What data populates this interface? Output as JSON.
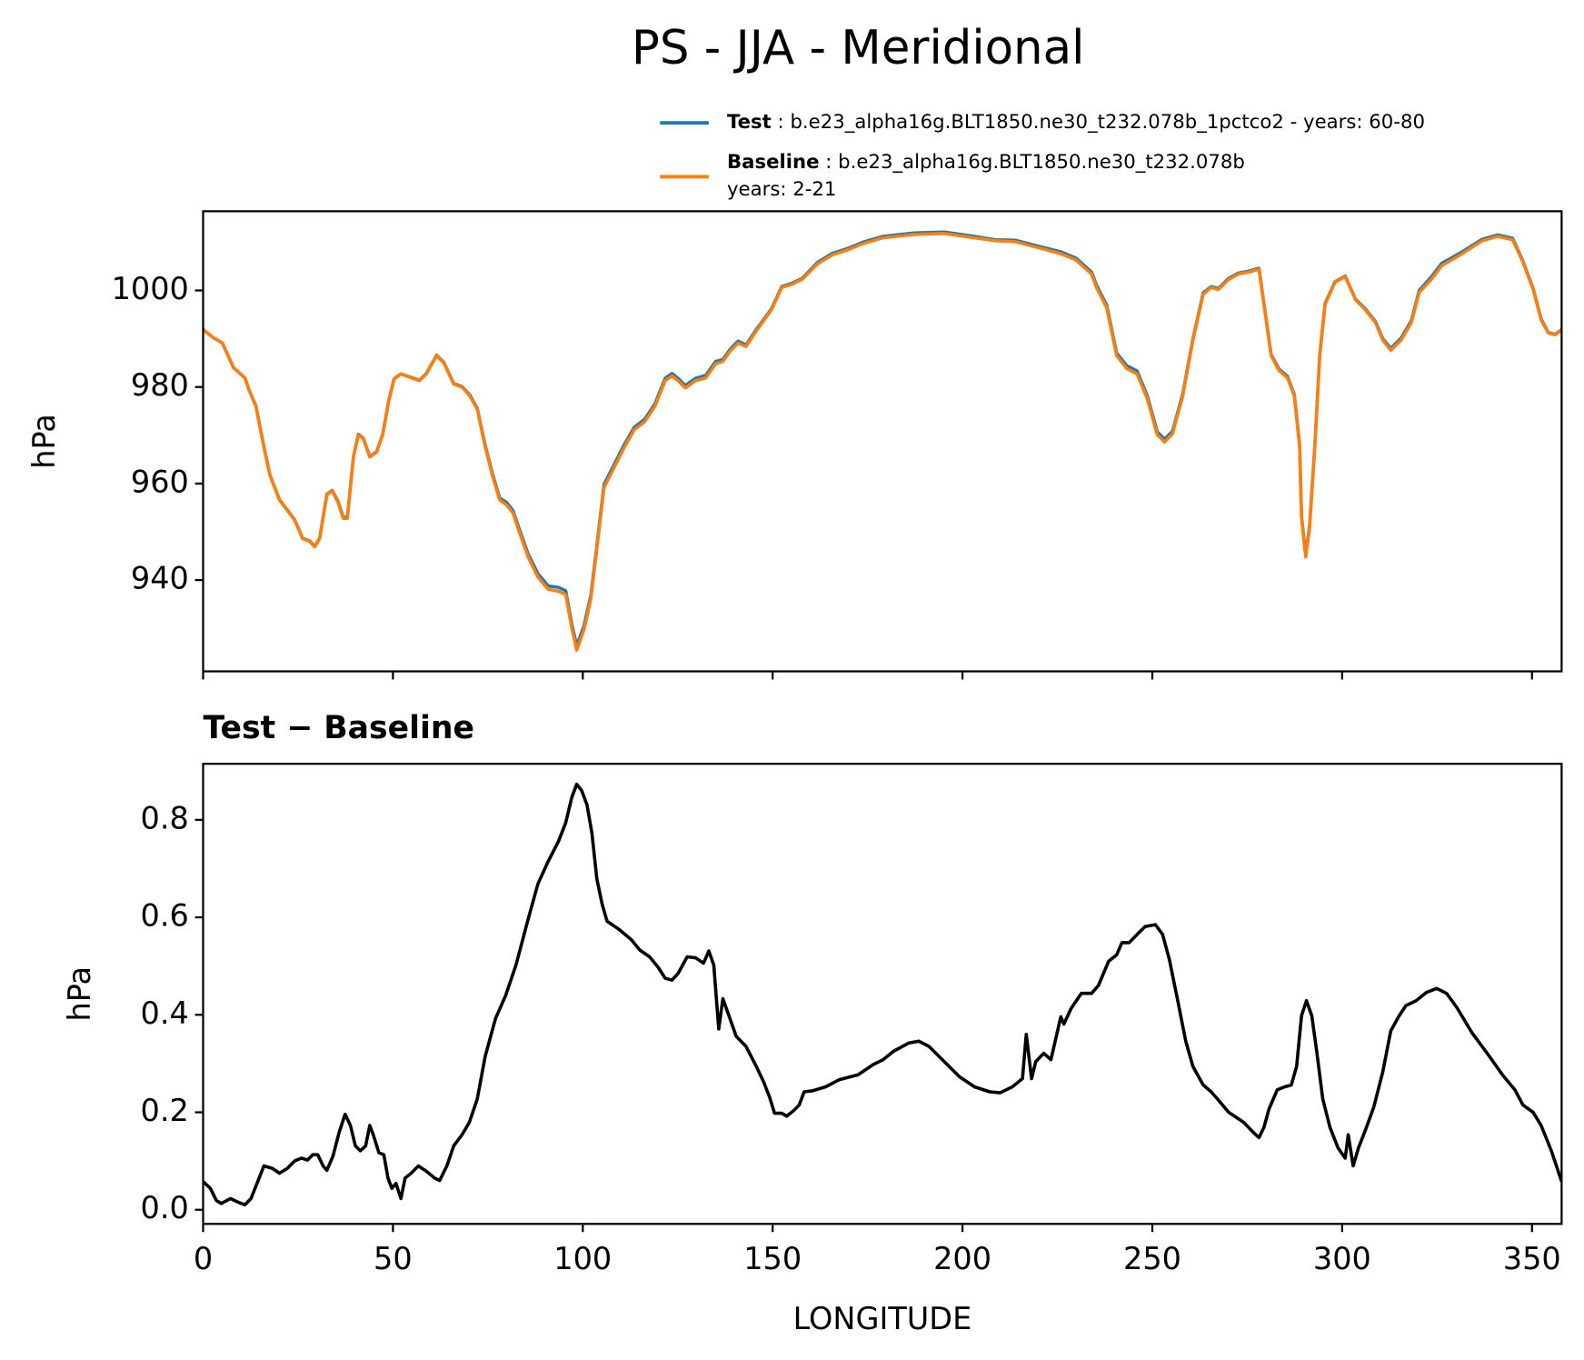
{
  "chart_data": [
    {
      "type": "line",
      "title": "PS - JJA - Meridional",
      "ylabel": "hPa",
      "xlim": [
        0,
        357.8
      ],
      "ylim": [
        921.1,
        1016.4
      ],
      "xticks": [
        0,
        50,
        100,
        150,
        200,
        250,
        300,
        350
      ],
      "show_xtick_labels": false,
      "yticks": [
        940,
        960,
        980,
        1000
      ],
      "legend": "above right",
      "x": [
        0,
        2.9,
        5.1,
        8.0,
        11.0,
        12.0,
        13.9,
        16.0,
        17.6,
        20.1,
        22.7,
        24.1,
        26.2,
        28.1,
        29.4,
        30.7,
        32.6,
        34.0,
        35.6,
        36.9,
        38.0,
        39.6,
        40.9,
        42.2,
        43.9,
        45.7,
        47.3,
        48.9,
        50.3,
        52.1,
        54.8,
        57.0,
        58.8,
        61.5,
        63.4,
        66.0,
        68.2,
        70.3,
        72.2,
        74.3,
        76.2,
        78.1,
        79.9,
        81.6,
        83.4,
        85.6,
        88.2,
        90.9,
        93.6,
        95.5,
        97.1,
        98.4,
        100.3,
        102.1,
        103.7,
        105.6,
        108.3,
        111.0,
        113.6,
        116.3,
        119.0,
        121.7,
        123.5,
        125.1,
        127.0,
        129.7,
        132.4,
        135.0,
        136.9,
        139.0,
        140.9,
        143.0,
        145.7,
        149.7,
        152.4,
        155.1,
        157.8,
        161.8,
        165.8,
        169.8,
        173.8,
        179.1,
        187.2,
        195.2,
        203.2,
        208.6,
        213.9,
        219.3,
        225.9,
        229.9,
        234.0,
        235.3,
        238.0,
        240.6,
        243.3,
        246.0,
        248.7,
        251.3,
        253.2,
        255.3,
        258.0,
        260.7,
        263.4,
        265.5,
        267.4,
        270.1,
        272.7,
        275.4,
        278.1,
        279.4,
        281.3,
        283.4,
        285.6,
        287.4,
        288.8,
        289.3,
        290.4,
        291.4,
        292.8,
        294.1,
        295.5,
        298.1,
        300.8,
        303.5,
        306.1,
        308.8,
        310.7,
        312.8,
        315.5,
        318.2,
        320.3,
        323.5,
        326.2,
        331.6,
        336.9,
        340.9,
        344.9,
        347.6,
        350.3,
        352.4,
        354.3,
        356.1,
        357.8
      ],
      "series": [
        {
          "name": "Test",
          "description": [
            " : b.e23_alpha16g.BLT1850.ne30_t232.078b_1pctco2 - years: 60-80"
          ],
          "color": "#1f77b4",
          "values": [
            991.9,
            990.1,
            989.1,
            984.0,
            981.9,
            979.6,
            976.1,
            967.7,
            961.8,
            956.7,
            954.0,
            952.5,
            948.7,
            948.1,
            947.0,
            948.7,
            957.8,
            958.6,
            956.2,
            953.0,
            953.0,
            965.6,
            970.2,
            969.4,
            965.6,
            966.6,
            970.2,
            977.2,
            981.7,
            982.7,
            982.0,
            981.4,
            982.8,
            986.6,
            985.1,
            980.7,
            980.1,
            978.3,
            975.6,
            967.9,
            962.1,
            957.0,
            956.1,
            954.4,
            950.3,
            945.4,
            941.3,
            938.8,
            938.5,
            937.8,
            930.9,
            926.4,
            930.5,
            936.7,
            947.1,
            959.8,
            964.0,
            968.2,
            971.7,
            973.3,
            976.5,
            981.8,
            982.8,
            981.8,
            980.3,
            981.8,
            982.4,
            985.3,
            985.7,
            988.0,
            989.5,
            988.7,
            991.9,
            996.2,
            1000.8,
            1001.5,
            1002.5,
            1005.8,
            1007.7,
            1008.7,
            1010.0,
            1011.2,
            1011.9,
            1012.1,
            1011.2,
            1010.5,
            1010.4,
            1009.3,
            1008.0,
            1006.7,
            1003.8,
            1001.1,
            996.9,
            987.0,
            984.4,
            983.3,
            978.1,
            970.7,
            969.2,
            970.8,
            978.5,
            990.0,
            999.5,
            1000.8,
            1000.4,
            1002.5,
            1003.6,
            1004.0,
            1004.6,
            997.3,
            986.7,
            983.7,
            982.2,
            978.4,
            968.0,
            953.2,
            945.2,
            951.1,
            967.9,
            986.7,
            997.3,
            1001.8,
            1003.0,
            998.2,
            996.2,
            993.5,
            990.0,
            988.0,
            990.1,
            993.7,
            1000.0,
            1002.8,
            1005.6,
            1008.0,
            1010.6,
            1011.5,
            1010.8,
            1006.1,
            1000.4,
            994.1,
            991.3,
            990.9,
            991.9
          ]
        },
        {
          "name": "Baseline",
          "description": [
            " : b.e23_alpha16g.BLT1850.ne30_t232.078b",
            "years: 2-21"
          ],
          "color": "#ff7f0e",
          "values": [
            991.8,
            990.1,
            989.1,
            984.0,
            981.9,
            979.6,
            976.0,
            967.6,
            961.7,
            956.6,
            953.9,
            952.4,
            948.6,
            948.0,
            946.9,
            948.6,
            957.7,
            958.5,
            956.0,
            952.8,
            952.8,
            965.5,
            970.1,
            969.3,
            965.5,
            966.5,
            970.1,
            977.1,
            981.7,
            982.7,
            981.9,
            981.3,
            982.7,
            986.5,
            985.0,
            980.6,
            980.0,
            978.1,
            975.4,
            967.6,
            961.7,
            956.6,
            955.6,
            953.9,
            949.7,
            944.8,
            940.6,
            938.1,
            937.7,
            937.0,
            930.1,
            925.5,
            929.7,
            936.0,
            946.5,
            959.2,
            963.4,
            967.6,
            971.2,
            972.8,
            976.0,
            981.3,
            982.3,
            981.3,
            979.8,
            981.3,
            981.9,
            984.8,
            985.3,
            987.6,
            989.1,
            988.4,
            991.6,
            996.0,
            1000.6,
            1001.3,
            1002.3,
            1005.5,
            1007.4,
            1008.4,
            1009.7,
            1010.9,
            1011.6,
            1011.8,
            1010.9,
            1010.3,
            1010.1,
            1009.0,
            1007.6,
            1006.3,
            1003.4,
            1000.6,
            996.4,
            986.5,
            983.8,
            982.7,
            977.5,
            970.1,
            968.6,
            970.3,
            978.1,
            989.7,
            999.2,
            1000.6,
            1000.2,
            1002.3,
            1003.4,
            1003.8,
            1004.4,
            997.1,
            986.5,
            983.4,
            981.9,
            978.1,
            967.6,
            952.8,
            944.8,
            950.7,
            967.6,
            986.5,
            997.1,
            1001.7,
            1002.9,
            998.1,
            996.0,
            993.3,
            989.7,
            987.6,
            989.7,
            993.3,
            999.6,
            1002.3,
            1005.1,
            1007.6,
            1010.3,
            1011.2,
            1010.5,
            1005.9,
            1000.2,
            993.9,
            991.2,
            990.8,
            991.8
          ]
        }
      ]
    },
    {
      "type": "line",
      "title": "Test − Baseline",
      "ylabel": "hPa",
      "xlabel": "LONGITUDE",
      "xlim": [
        0,
        357.8
      ],
      "ylim": [
        -0.029,
        0.915
      ],
      "xticks": [
        0,
        50,
        100,
        150,
        200,
        250,
        300,
        350
      ],
      "show_xtick_labels": true,
      "yticks": [
        {
          "value": 0,
          "label": "0.0"
        },
        0.2,
        0.4,
        0.6,
        0.8
      ],
      "x": [
        0,
        1.9,
        3.5,
        4.8,
        7.2,
        9.4,
        11.0,
        12.6,
        14.2,
        16.0,
        18.2,
        20.1,
        22.2,
        24.1,
        25.9,
        27.5,
        28.9,
        30.2,
        31.6,
        32.6,
        34.2,
        35.8,
        37.4,
        38.8,
        40.1,
        41.4,
        42.8,
        43.9,
        44.9,
        46.3,
        47.6,
        48.7,
        49.7,
        50.8,
        52.1,
        53.2,
        54.8,
        56.7,
        58.8,
        61.0,
        62.3,
        64.2,
        66.0,
        68.2,
        70.1,
        72.2,
        74.3,
        77.0,
        79.7,
        82.4,
        85.6,
        88.2,
        90.9,
        93.6,
        95.5,
        97.1,
        98.4,
        99.7,
        101.1,
        102.4,
        103.7,
        105.1,
        106.4,
        109.6,
        112.8,
        115.0,
        117.6,
        119.8,
        121.7,
        123.5,
        125.1,
        127.5,
        129.7,
        131.8,
        133.2,
        134.5,
        135.8,
        136.9,
        138.5,
        140.4,
        143.0,
        145.7,
        147.6,
        149.2,
        150.5,
        152.4,
        153.7,
        155.6,
        157.0,
        158.3,
        160.4,
        163.9,
        167.6,
        172.5,
        176.5,
        179.1,
        181.8,
        185.8,
        188.5,
        191.2,
        195.2,
        199.2,
        203.2,
        207.2,
        209.9,
        213.1,
        215.8,
        216.8,
        218.2,
        219.3,
        221.4,
        223.3,
        225.9,
        226.7,
        228.6,
        231.3,
        234.0,
        235.8,
        238.5,
        240.6,
        242.0,
        243.9,
        246.0,
        248.1,
        250.8,
        252.7,
        254.5,
        256.7,
        258.8,
        260.7,
        263.4,
        265.5,
        267.4,
        270.1,
        274.1,
        276.7,
        278.1,
        279.4,
        280.7,
        282.9,
        284.8,
        286.6,
        288.0,
        289.3,
        290.6,
        292.0,
        293.3,
        294.9,
        296.8,
        298.9,
        300.8,
        301.6,
        302.9,
        304.3,
        306.1,
        308.3,
        310.7,
        312.8,
        315.0,
        316.8,
        319.5,
        322.2,
        324.9,
        327.5,
        330.2,
        334.2,
        338.2,
        342.2,
        345.5,
        347.6,
        350.3,
        352.4,
        355.1,
        357.8
      ],
      "color": "#000000",
      "values": [
        0.058,
        0.044,
        0.019,
        0.013,
        0.023,
        0.015,
        0.01,
        0.023,
        0.054,
        0.09,
        0.085,
        0.075,
        0.085,
        0.1,
        0.106,
        0.102,
        0.113,
        0.113,
        0.09,
        0.081,
        0.11,
        0.158,
        0.196,
        0.173,
        0.131,
        0.121,
        0.131,
        0.173,
        0.152,
        0.117,
        0.113,
        0.065,
        0.044,
        0.054,
        0.023,
        0.065,
        0.075,
        0.09,
        0.079,
        0.065,
        0.06,
        0.09,
        0.131,
        0.154,
        0.179,
        0.227,
        0.315,
        0.392,
        0.44,
        0.502,
        0.596,
        0.669,
        0.715,
        0.756,
        0.794,
        0.846,
        0.873,
        0.86,
        0.831,
        0.773,
        0.679,
        0.627,
        0.592,
        0.575,
        0.554,
        0.533,
        0.519,
        0.498,
        0.475,
        0.471,
        0.485,
        0.519,
        0.517,
        0.506,
        0.531,
        0.502,
        0.371,
        0.433,
        0.398,
        0.356,
        0.335,
        0.294,
        0.263,
        0.231,
        0.198,
        0.198,
        0.192,
        0.204,
        0.215,
        0.242,
        0.244,
        0.252,
        0.267,
        0.277,
        0.298,
        0.308,
        0.325,
        0.342,
        0.346,
        0.335,
        0.304,
        0.273,
        0.252,
        0.242,
        0.24,
        0.252,
        0.269,
        0.36,
        0.269,
        0.304,
        0.321,
        0.308,
        0.396,
        0.381,
        0.413,
        0.444,
        0.444,
        0.46,
        0.51,
        0.523,
        0.548,
        0.548,
        0.565,
        0.581,
        0.585,
        0.565,
        0.513,
        0.429,
        0.346,
        0.294,
        0.256,
        0.242,
        0.225,
        0.2,
        0.179,
        0.158,
        0.148,
        0.169,
        0.206,
        0.246,
        0.252,
        0.256,
        0.294,
        0.398,
        0.429,
        0.398,
        0.325,
        0.227,
        0.169,
        0.127,
        0.106,
        0.154,
        0.09,
        0.127,
        0.163,
        0.21,
        0.283,
        0.367,
        0.398,
        0.419,
        0.429,
        0.446,
        0.454,
        0.444,
        0.415,
        0.363,
        0.321,
        0.277,
        0.246,
        0.215,
        0.2,
        0.173,
        0.121,
        0.058
      ]
    }
  ]
}
